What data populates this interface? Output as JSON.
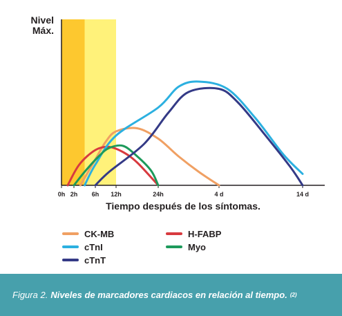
{
  "chart_data": {
    "type": "line",
    "ylabel_line1": "Nivel",
    "ylabel_line2": "Máx.",
    "xlabel": "Tiempo después de los síntomas.",
    "x_ticks": [
      {
        "label": "0h",
        "hours": 0
      },
      {
        "label": "2h",
        "hours": 2
      },
      {
        "label": "6h",
        "hours": 6
      },
      {
        "label": "12h",
        "hours": 12
      },
      {
        "label": "24h",
        "hours": 24
      },
      {
        "label": "4 d",
        "hours": 96
      },
      {
        "label": "14 d",
        "hours": 336
      }
    ],
    "shaded_bands": [
      {
        "from_hours": 0,
        "to_hours": 4,
        "color": "#fdc82f"
      },
      {
        "from_hours": 4,
        "to_hours": 12,
        "color": "#fff27a"
      }
    ],
    "legend_position": "bottom",
    "series": [
      {
        "name": "CK-MB",
        "color": "#f0a063",
        "points": [
          [
            3.2,
            0
          ],
          [
            6,
            0.25
          ],
          [
            9,
            0.42
          ],
          [
            12,
            0.52
          ],
          [
            18,
            0.55
          ],
          [
            24,
            0.45
          ],
          [
            48,
            0.28
          ],
          [
            72,
            0.13
          ],
          [
            96,
            0
          ]
        ]
      },
      {
        "name": "H-FABP",
        "color": "#d83a3f",
        "points": [
          [
            1,
            0
          ],
          [
            3,
            0.2
          ],
          [
            6,
            0.34
          ],
          [
            10,
            0.37
          ],
          [
            14,
            0.32
          ],
          [
            18,
            0.22
          ],
          [
            24,
            0
          ]
        ]
      },
      {
        "name": "cTnI",
        "color": "#2cb0e0",
        "points": [
          [
            4,
            0
          ],
          [
            6,
            0.2
          ],
          [
            12,
            0.48
          ],
          [
            24,
            0.75
          ],
          [
            48,
            0.95
          ],
          [
            72,
            1.0
          ],
          [
            120,
            0.93
          ],
          [
            200,
            0.65
          ],
          [
            280,
            0.3
          ],
          [
            336,
            0.11
          ]
        ]
      },
      {
        "name": "Myo",
        "color": "#1d9a5b",
        "points": [
          [
            2,
            0
          ],
          [
            4,
            0.13
          ],
          [
            7,
            0.28
          ],
          [
            10,
            0.36
          ],
          [
            14,
            0.38
          ],
          [
            18,
            0.28
          ],
          [
            22,
            0.14
          ],
          [
            24,
            0
          ]
        ]
      },
      {
        "name": "cTnT",
        "color": "#343a86",
        "points": [
          [
            6,
            0
          ],
          [
            10,
            0.13
          ],
          [
            20,
            0.4
          ],
          [
            36,
            0.7
          ],
          [
            60,
            0.9
          ],
          [
            96,
            0.93
          ],
          [
            150,
            0.8
          ],
          [
            220,
            0.52
          ],
          [
            300,
            0.18
          ],
          [
            336,
            0
          ]
        ]
      }
    ]
  },
  "caption": {
    "label": "Figura 2.",
    "text": "Niveles de marcadores cardiacos en relación al tiempo.",
    "ref": "(2)"
  }
}
